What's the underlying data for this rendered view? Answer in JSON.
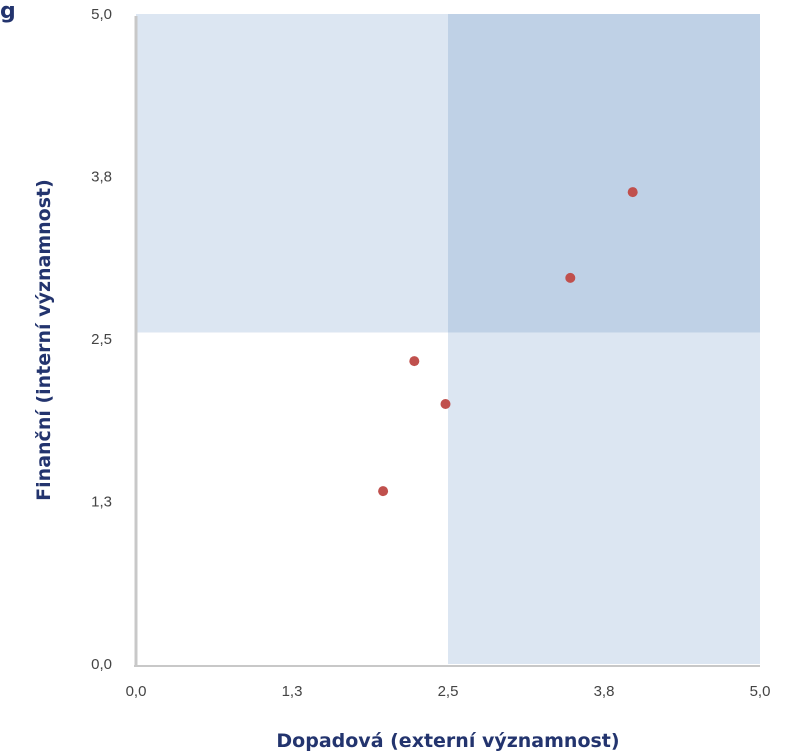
{
  "chart_data": {
    "type": "scatter",
    "title": "",
    "xlabel": "Dopadová (externí významnost)",
    "ylabel": "Finanční (interní významnost)",
    "xlim": [
      0,
      5
    ],
    "ylim": [
      0,
      5
    ],
    "x_ticks": [
      "0,0",
      "1,3",
      "2,5",
      "3,8",
      "5,0"
    ],
    "y_ticks": [
      "0,0",
      "1,3",
      "2,5",
      "3,8",
      "5,0"
    ],
    "thresholds": {
      "x": 2.5,
      "y": 2.55
    },
    "grid": false,
    "points": [
      {
        "x": 1.98,
        "y": 1.33
      },
      {
        "x": 2.23,
        "y": 2.33
      },
      {
        "x": 2.48,
        "y": 2.0
      },
      {
        "x": 3.48,
        "y": 2.97
      },
      {
        "x": 3.98,
        "y": 3.63
      }
    ],
    "colors": {
      "point": "#c0504d",
      "region_light": "#dce6f2",
      "region_dark": "#bfd1e6",
      "axis": "#c8c8c8",
      "title": "#23346e"
    }
  },
  "header": {
    "corner_mark": "g"
  }
}
